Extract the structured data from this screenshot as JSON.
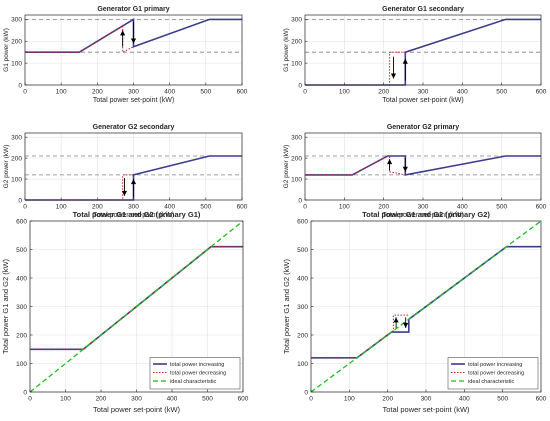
{
  "colors": {
    "increasing": "#3c3c8c",
    "increasing_blue": "#1f5fbf",
    "decreasing": "#cc2222",
    "ideal": "#22bb22",
    "reference": "#808080",
    "grid": "#e2e2e2",
    "axis": "#262626"
  },
  "chart_data": [
    {
      "type": "line",
      "title": "Generator G1 primary",
      "xlabel": "Total power set-point (kW)",
      "ylabel": "G1 power (kW)",
      "xlim": [
        0,
        600
      ],
      "ylim": [
        0,
        320
      ],
      "xticks": [
        0,
        100,
        200,
        300,
        400,
        500,
        600
      ],
      "yticks": [
        0,
        100,
        200,
        300
      ],
      "grid": true,
      "reference_lines": [
        150,
        300
      ],
      "series": [
        {
          "role": "increasing",
          "x": [
            0,
            150,
            300,
            300,
            510,
            600
          ],
          "y": [
            150,
            150,
            300,
            175,
            300,
            300
          ]
        },
        {
          "role": "decreasing",
          "x": [
            0,
            150,
            270,
            270,
            300
          ],
          "y": [
            150,
            150,
            270,
            150,
            175
          ]
        }
      ],
      "arrows": [
        {
          "x": 300,
          "from": 290,
          "to": 190,
          "dir": "down"
        },
        {
          "x": 270,
          "from": 175,
          "to": 250,
          "dir": "up"
        }
      ]
    },
    {
      "type": "line",
      "title": "Generator G1 secondary",
      "xlabel": "Total power set-point (kW)",
      "ylabel": "G1 power (kW)",
      "xlim": [
        0,
        600
      ],
      "ylim": [
        0,
        320
      ],
      "xticks": [
        0,
        100,
        200,
        300,
        400,
        500,
        600
      ],
      "yticks": [
        0,
        100,
        200,
        300
      ],
      "grid": true,
      "reference_lines": [
        150,
        300
      ],
      "series": [
        {
          "role": "increasing",
          "x": [
            0,
            255,
            255,
            510,
            600
          ],
          "y": [
            0,
            0,
            150,
            300,
            300
          ]
        },
        {
          "role": "decreasing",
          "x": [
            0,
            215,
            215,
            255
          ],
          "y": [
            0,
            0,
            150,
            150
          ]
        }
      ],
      "arrows": [
        {
          "x": 255,
          "from": 20,
          "to": 120,
          "dir": "up"
        },
        {
          "x": 225,
          "from": 130,
          "to": 30,
          "dir": "down"
        }
      ]
    },
    {
      "type": "line",
      "title": "Generator G2 secondary",
      "xlabel": "Total power set-point (kW)",
      "ylabel": "G2 power (kW)",
      "xlim": [
        0,
        600
      ],
      "ylim": [
        0,
        320
      ],
      "xticks": [
        0,
        100,
        200,
        300,
        400,
        500,
        600
      ],
      "yticks": [
        0,
        100,
        200,
        300
      ],
      "grid": true,
      "reference_lines": [
        120,
        210
      ],
      "series": [
        {
          "role": "increasing",
          "x": [
            0,
            300,
            300,
            510,
            600
          ],
          "y": [
            0,
            0,
            120,
            210,
            210
          ]
        },
        {
          "role": "decreasing",
          "x": [
            0,
            270,
            270,
            300
          ],
          "y": [
            0,
            0,
            120,
            120
          ]
        }
      ],
      "arrows": [
        {
          "x": 300,
          "from": 15,
          "to": 100,
          "dir": "up"
        },
        {
          "x": 275,
          "from": 105,
          "to": 20,
          "dir": "down"
        }
      ]
    },
    {
      "type": "line",
      "title": "Generator G2 primary",
      "xlabel": "Total power set-point (kW)",
      "ylabel": "G2 power (kW)",
      "xlim": [
        0,
        600
      ],
      "ylim": [
        0,
        320
      ],
      "xticks": [
        0,
        100,
        200,
        300,
        400,
        500,
        600
      ],
      "yticks": [
        0,
        100,
        200,
        300
      ],
      "grid": true,
      "reference_lines": [
        120,
        210
      ],
      "series": [
        {
          "role": "increasing",
          "x": [
            0,
            120,
            210,
            255,
            255,
            510,
            600
          ],
          "y": [
            120,
            120,
            210,
            210,
            120,
            210,
            210
          ]
        },
        {
          "role": "decreasing",
          "x": [
            0,
            120,
            210,
            215,
            215,
            255
          ],
          "y": [
            120,
            120,
            210,
            210,
            135,
            120
          ]
        }
      ],
      "arrows": [
        {
          "x": 255,
          "from": 200,
          "to": 135,
          "dir": "down"
        },
        {
          "x": 215,
          "from": 140,
          "to": 195,
          "dir": "up"
        }
      ]
    },
    {
      "type": "line",
      "title": "Total power G1 and G2 (primary G1)",
      "xlabel": "Total power set-point (kW)",
      "ylabel": "Total power G1 and G2 (kW)",
      "xlim": [
        0,
        600
      ],
      "ylim": [
        0,
        600
      ],
      "xticks": [
        0,
        100,
        200,
        300,
        400,
        500,
        600
      ],
      "yticks": [
        0,
        100,
        200,
        300,
        400,
        500,
        600
      ],
      "grid": true,
      "series": [
        {
          "name": "total power increasing",
          "role": "increasing",
          "x": [
            0,
            150,
            510,
            600
          ],
          "y": [
            150,
            150,
            510,
            510
          ]
        },
        {
          "name": "total power decreasing",
          "role": "decreasing",
          "x": [
            0,
            150,
            510,
            600
          ],
          "y": [
            150,
            150,
            510,
            510
          ]
        },
        {
          "name": "ideal characteristic",
          "role": "ideal",
          "x": [
            0,
            600
          ],
          "y": [
            0,
            600
          ]
        }
      ],
      "legend": "bottom-right"
    },
    {
      "type": "line",
      "title": "Total power G1 and G2 (primary G2)",
      "xlabel": "Total power set-point (kW)",
      "ylabel": "Total power G1 and G2 (kW)",
      "xlim": [
        0,
        600
      ],
      "ylim": [
        0,
        600
      ],
      "xticks": [
        0,
        100,
        200,
        300,
        400,
        500,
        600
      ],
      "yticks": [
        0,
        100,
        200,
        300,
        400,
        500,
        600
      ],
      "grid": true,
      "series": [
        {
          "name": "total power increasing",
          "role": "increasing",
          "x": [
            0,
            120,
            210,
            255,
            255,
            510,
            600
          ],
          "y": [
            120,
            120,
            210,
            210,
            255,
            510,
            510
          ]
        },
        {
          "name": "total power decreasing",
          "role": "decreasing",
          "x": [
            0,
            120,
            215,
            215,
            255
          ],
          "y": [
            120,
            120,
            215,
            270,
            270
          ]
        },
        {
          "name": "ideal characteristic",
          "role": "ideal",
          "x": [
            0,
            600
          ],
          "y": [
            0,
            600
          ]
        }
      ],
      "arrows": [
        {
          "x": 222,
          "from": 225,
          "to": 262,
          "dir": "up"
        },
        {
          "x": 247,
          "from": 262,
          "to": 225,
          "dir": "down"
        }
      ],
      "legend": "bottom-right"
    }
  ]
}
